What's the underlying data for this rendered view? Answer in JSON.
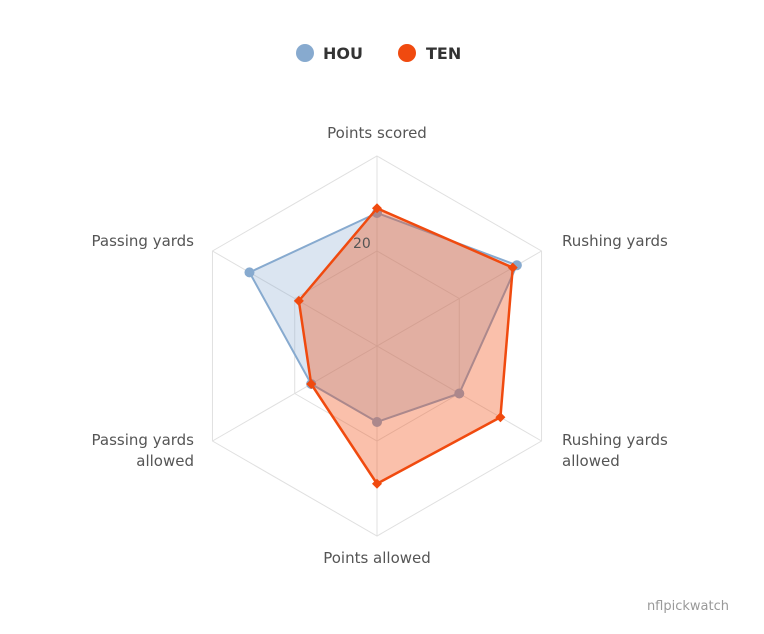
{
  "chart_data": {
    "type": "radar",
    "axes": [
      "Points scored",
      "Rushing yards",
      "Rushing yards allowed",
      "Points allowed",
      "Passing yards allowed",
      "Passing yards"
    ],
    "axis_max": 40,
    "tick_values": [
      20
    ],
    "tick_labels": [
      "20"
    ],
    "grid": true,
    "legend_position": "top-center",
    "series": [
      {
        "name": "HOU",
        "values": [
          28,
          34,
          20,
          16,
          16,
          31
        ],
        "color": "#87aacf",
        "fill_opacity": 0.3,
        "marker": "circle"
      },
      {
        "name": "TEN",
        "values": [
          29,
          33,
          30,
          29,
          16,
          19
        ],
        "color": "#f04a0f",
        "fill_opacity": 0.35,
        "marker": "diamond"
      }
    ]
  },
  "legend": {
    "hou_label": "HOU",
    "ten_label": "TEN"
  },
  "axis_labels": {
    "points_scored": "Points scored",
    "rushing_yards": "Rushing yards",
    "rushing_yards_allowed_1": "Rushing yards",
    "rushing_yards_allowed_2": "allowed",
    "points_allowed": "Points allowed",
    "passing_yards_allowed_1": "Passing yards",
    "passing_yards_allowed_2": "allowed",
    "passing_yards": "Passing yards"
  },
  "tick": {
    "label_20": "20"
  },
  "credit": "nflpickwatch"
}
